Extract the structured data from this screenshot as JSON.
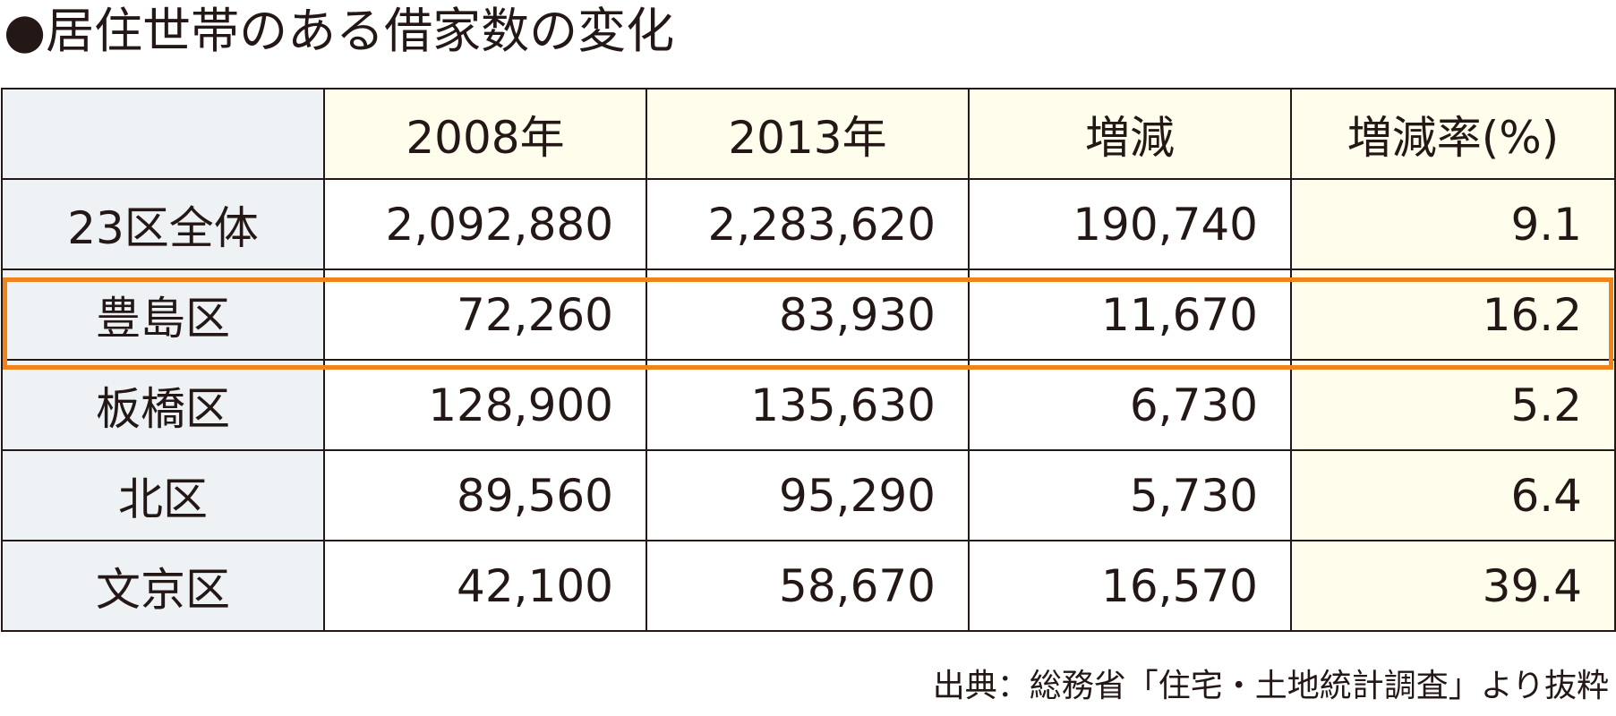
{
  "chart_data": {
    "type": "table",
    "title": "●居住世帯のある借家数の変化",
    "columns": [
      "",
      "2008年",
      "2013年",
      "増減",
      "増減率(%)"
    ],
    "rows": [
      {
        "name": "23区全体",
        "y2008": "2,092,880",
        "y2013": "2,283,620",
        "change": "190,740",
        "rate": "9.1"
      },
      {
        "name": "豊島区",
        "y2008": "72,260",
        "y2013": "83,930",
        "change": "11,670",
        "rate": "16.2"
      },
      {
        "name": "板橋区",
        "y2008": "128,900",
        "y2013": "135,630",
        "change": "6,730",
        "rate": "5.2"
      },
      {
        "name": "北区",
        "y2008": "89,560",
        "y2013": "95,290",
        "change": "5,730",
        "rate": "6.4"
      },
      {
        "name": "文京区",
        "y2008": "42,100",
        "y2013": "58,670",
        "change": "16,570",
        "rate": "39.4"
      }
    ],
    "highlighted_row": "豊島区",
    "source": "出典：総務省「住宅・土地統計調査」より抜粋"
  },
  "colors": {
    "header_bg": "#fffdec",
    "label_bg": "#eef2f4",
    "highlight": "#f08319",
    "text": "#231815"
  }
}
